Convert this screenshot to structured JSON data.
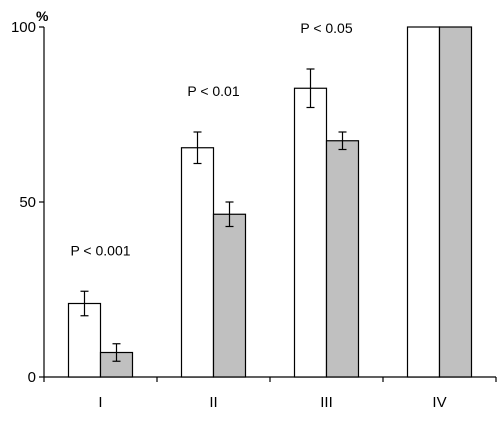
{
  "chart_data": {
    "type": "bar",
    "title": "",
    "xlabel": "",
    "ylabel": "",
    "y_unit": "%",
    "ylim": [
      0,
      100
    ],
    "yticks": [
      0,
      50,
      100
    ],
    "grid": false,
    "categories": [
      "I",
      "II",
      "III",
      "IV"
    ],
    "series": [
      {
        "color": "#ffffff",
        "values": [
          21,
          65.5,
          82.5,
          100
        ],
        "errors": [
          3.5,
          4.5,
          5.5,
          0
        ]
      },
      {
        "color": "#c0c0c0",
        "values": [
          7,
          46.5,
          67.5,
          100
        ],
        "errors": [
          2.5,
          3.5,
          2.5,
          0
        ]
      }
    ],
    "annotations": [
      {
        "category": "I",
        "text": "P < 0.001"
      },
      {
        "category": "II",
        "text": "P < 0.01"
      },
      {
        "category": "III",
        "text": "P < 0.05"
      }
    ]
  }
}
